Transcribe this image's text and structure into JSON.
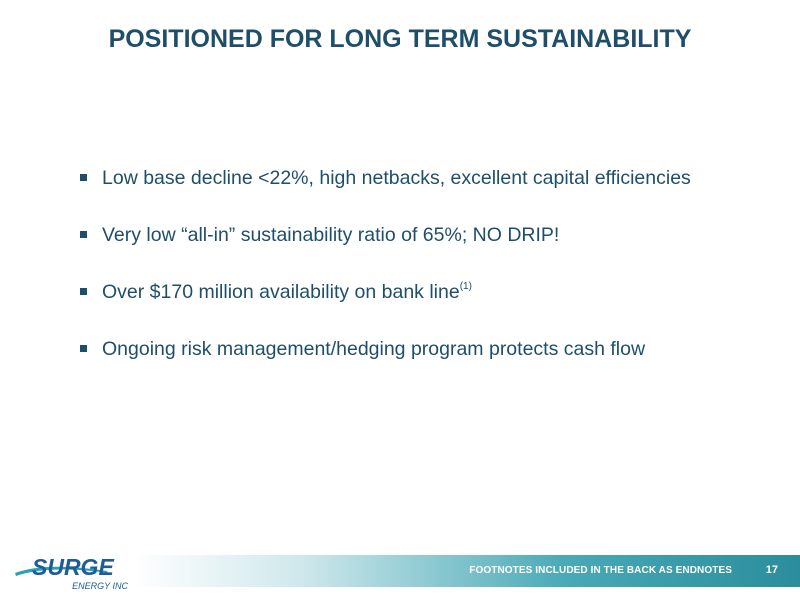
{
  "slide": {
    "title": "POSITIONED FOR LONG TERM SUSTAINABILITY",
    "bullets": [
      {
        "text": "Low base decline <22%, high netbacks, excellent capital efficiencies"
      },
      {
        "text": "Very low “all-in” sustainability ratio of 65%; NO DRIP!"
      },
      {
        "text": "Over $170 million availability on bank line",
        "superscript": "(1)"
      },
      {
        "text": "Ongoing risk management/hedging program protects cash flow"
      }
    ]
  },
  "footer": {
    "logo_word": "SURGE",
    "logo_subtitle": "ENERGY INC",
    "footnote_note": "FOOTNOTES INCLUDED IN THE BACK AS ENDNOTES",
    "page_number": "17"
  },
  "colors": {
    "title": "#1f4e6b",
    "body_text": "#1f4e6b",
    "bar_dark": "#2b8d9b",
    "bar_light": "#cfe8ec",
    "logo_blue": "#1f5b9a",
    "logo_teal": "#2aa1b2"
  },
  "icons": {
    "bullet": "square-bullet-icon",
    "logo": "surge-energy-logo"
  }
}
